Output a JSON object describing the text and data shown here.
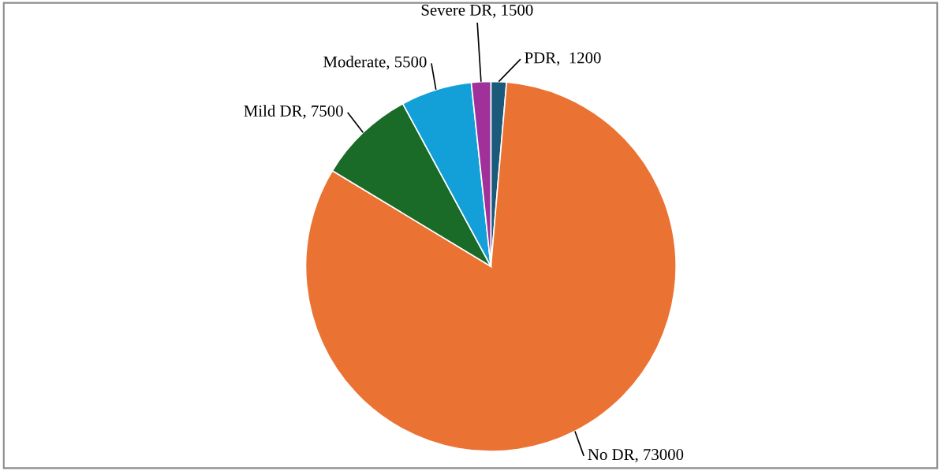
{
  "chart_data": {
    "type": "pie",
    "categories": [
      "PDR",
      "No DR",
      "Mild DR",
      "Moderate",
      "Severe DR"
    ],
    "values": [
      1200,
      73000,
      7500,
      5500,
      1500
    ],
    "colors": [
      "#1b5a7a",
      "#ea7233",
      "#1a6a28",
      "#139fd8",
      "#a0309a"
    ],
    "value_labels": [
      ",  1200",
      ", 73000",
      ", 7500",
      ", 5500",
      ", 1500"
    ],
    "legend": false
  }
}
